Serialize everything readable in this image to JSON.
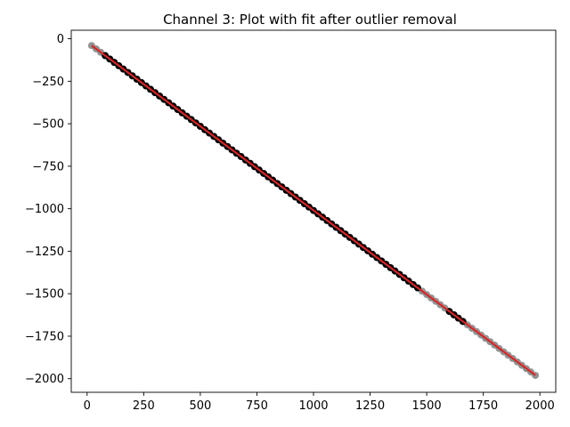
{
  "chart_data": {
    "type": "scatter",
    "title": "Channel 3: Plot with fit after outlier removal",
    "xlabel": "",
    "ylabel": "",
    "xlim": [
      -70,
      2070
    ],
    "ylim": [
      -2080,
      50
    ],
    "xticks": [
      0,
      250,
      500,
      750,
      1000,
      1250,
      1500,
      1750,
      2000
    ],
    "yticks": [
      0,
      -250,
      -500,
      -750,
      -1000,
      -1250,
      -1500,
      -1750,
      -2000
    ],
    "grid": false,
    "legend": "none",
    "series": [
      {
        "role": "outliers",
        "color": "#808080",
        "x_start": 20,
        "x_end": 1980,
        "x_step": 20,
        "x_ranges": [
          [
            20,
            60
          ],
          [
            1480,
            1580
          ],
          [
            1680,
            1980
          ]
        ]
      },
      {
        "role": "inliers",
        "color": "#000000",
        "x_start": 20,
        "x_end": 1980,
        "x_step": 20,
        "x_ranges": [
          [
            80,
            1460
          ],
          [
            1600,
            1660
          ]
        ]
      },
      {
        "role": "fit",
        "type": "line",
        "color": "#d62728",
        "x": [
          20,
          1980
        ],
        "y": [
          -40,
          -1980
        ]
      }
    ],
    "relation": {
      "slope": -0.99,
      "intercept": -20.2
    }
  }
}
